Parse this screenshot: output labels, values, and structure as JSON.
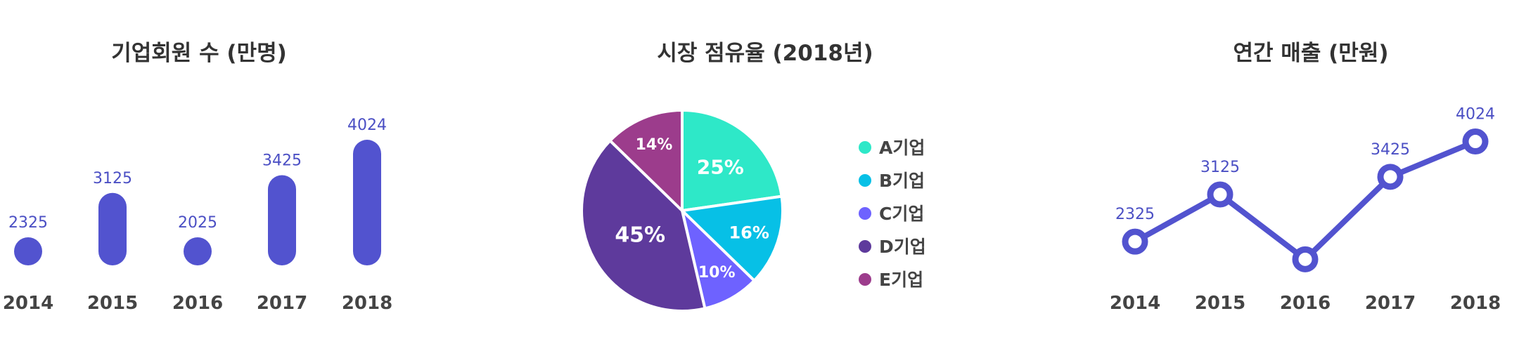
{
  "colors": {
    "accent": "#5253cf",
    "pie": [
      "#2ee8c8",
      "#07c0e6",
      "#6e62ff",
      "#5e3a9c",
      "#9c3c8c"
    ]
  },
  "chart_data": [
    {
      "type": "bar",
      "title": "기업회원 수 (만명)",
      "categories": [
        "2014",
        "2015",
        "2016",
        "2017",
        "2018"
      ],
      "values": [
        2325,
        3125,
        2025,
        3425,
        4024
      ],
      "value_labels": [
        "2325",
        "3125",
        "2025",
        "3425",
        "4024"
      ],
      "ylim": [
        1900,
        4250
      ],
      "grid": false
    },
    {
      "type": "pie",
      "title": "시장 점유율 (2018년)",
      "labels": [
        "A기업",
        "B기업",
        "C기업",
        "D기업",
        "E기업"
      ],
      "values": [
        25,
        16,
        10,
        45,
        14
      ],
      "value_labels": [
        "25%",
        "16%",
        "10%",
        "45%",
        "14%"
      ],
      "legend": "right"
    },
    {
      "type": "line",
      "title": "연간 매출 (만원)",
      "categories": [
        "2014",
        "2015",
        "2016",
        "2017",
        "2018"
      ],
      "values": [
        2325,
        3125,
        2025,
        3425,
        4024
      ],
      "value_labels": [
        "2325",
        "3125",
        "",
        "3425",
        "4024"
      ],
      "ylim": [
        1600,
        4400
      ],
      "grid": false
    }
  ]
}
